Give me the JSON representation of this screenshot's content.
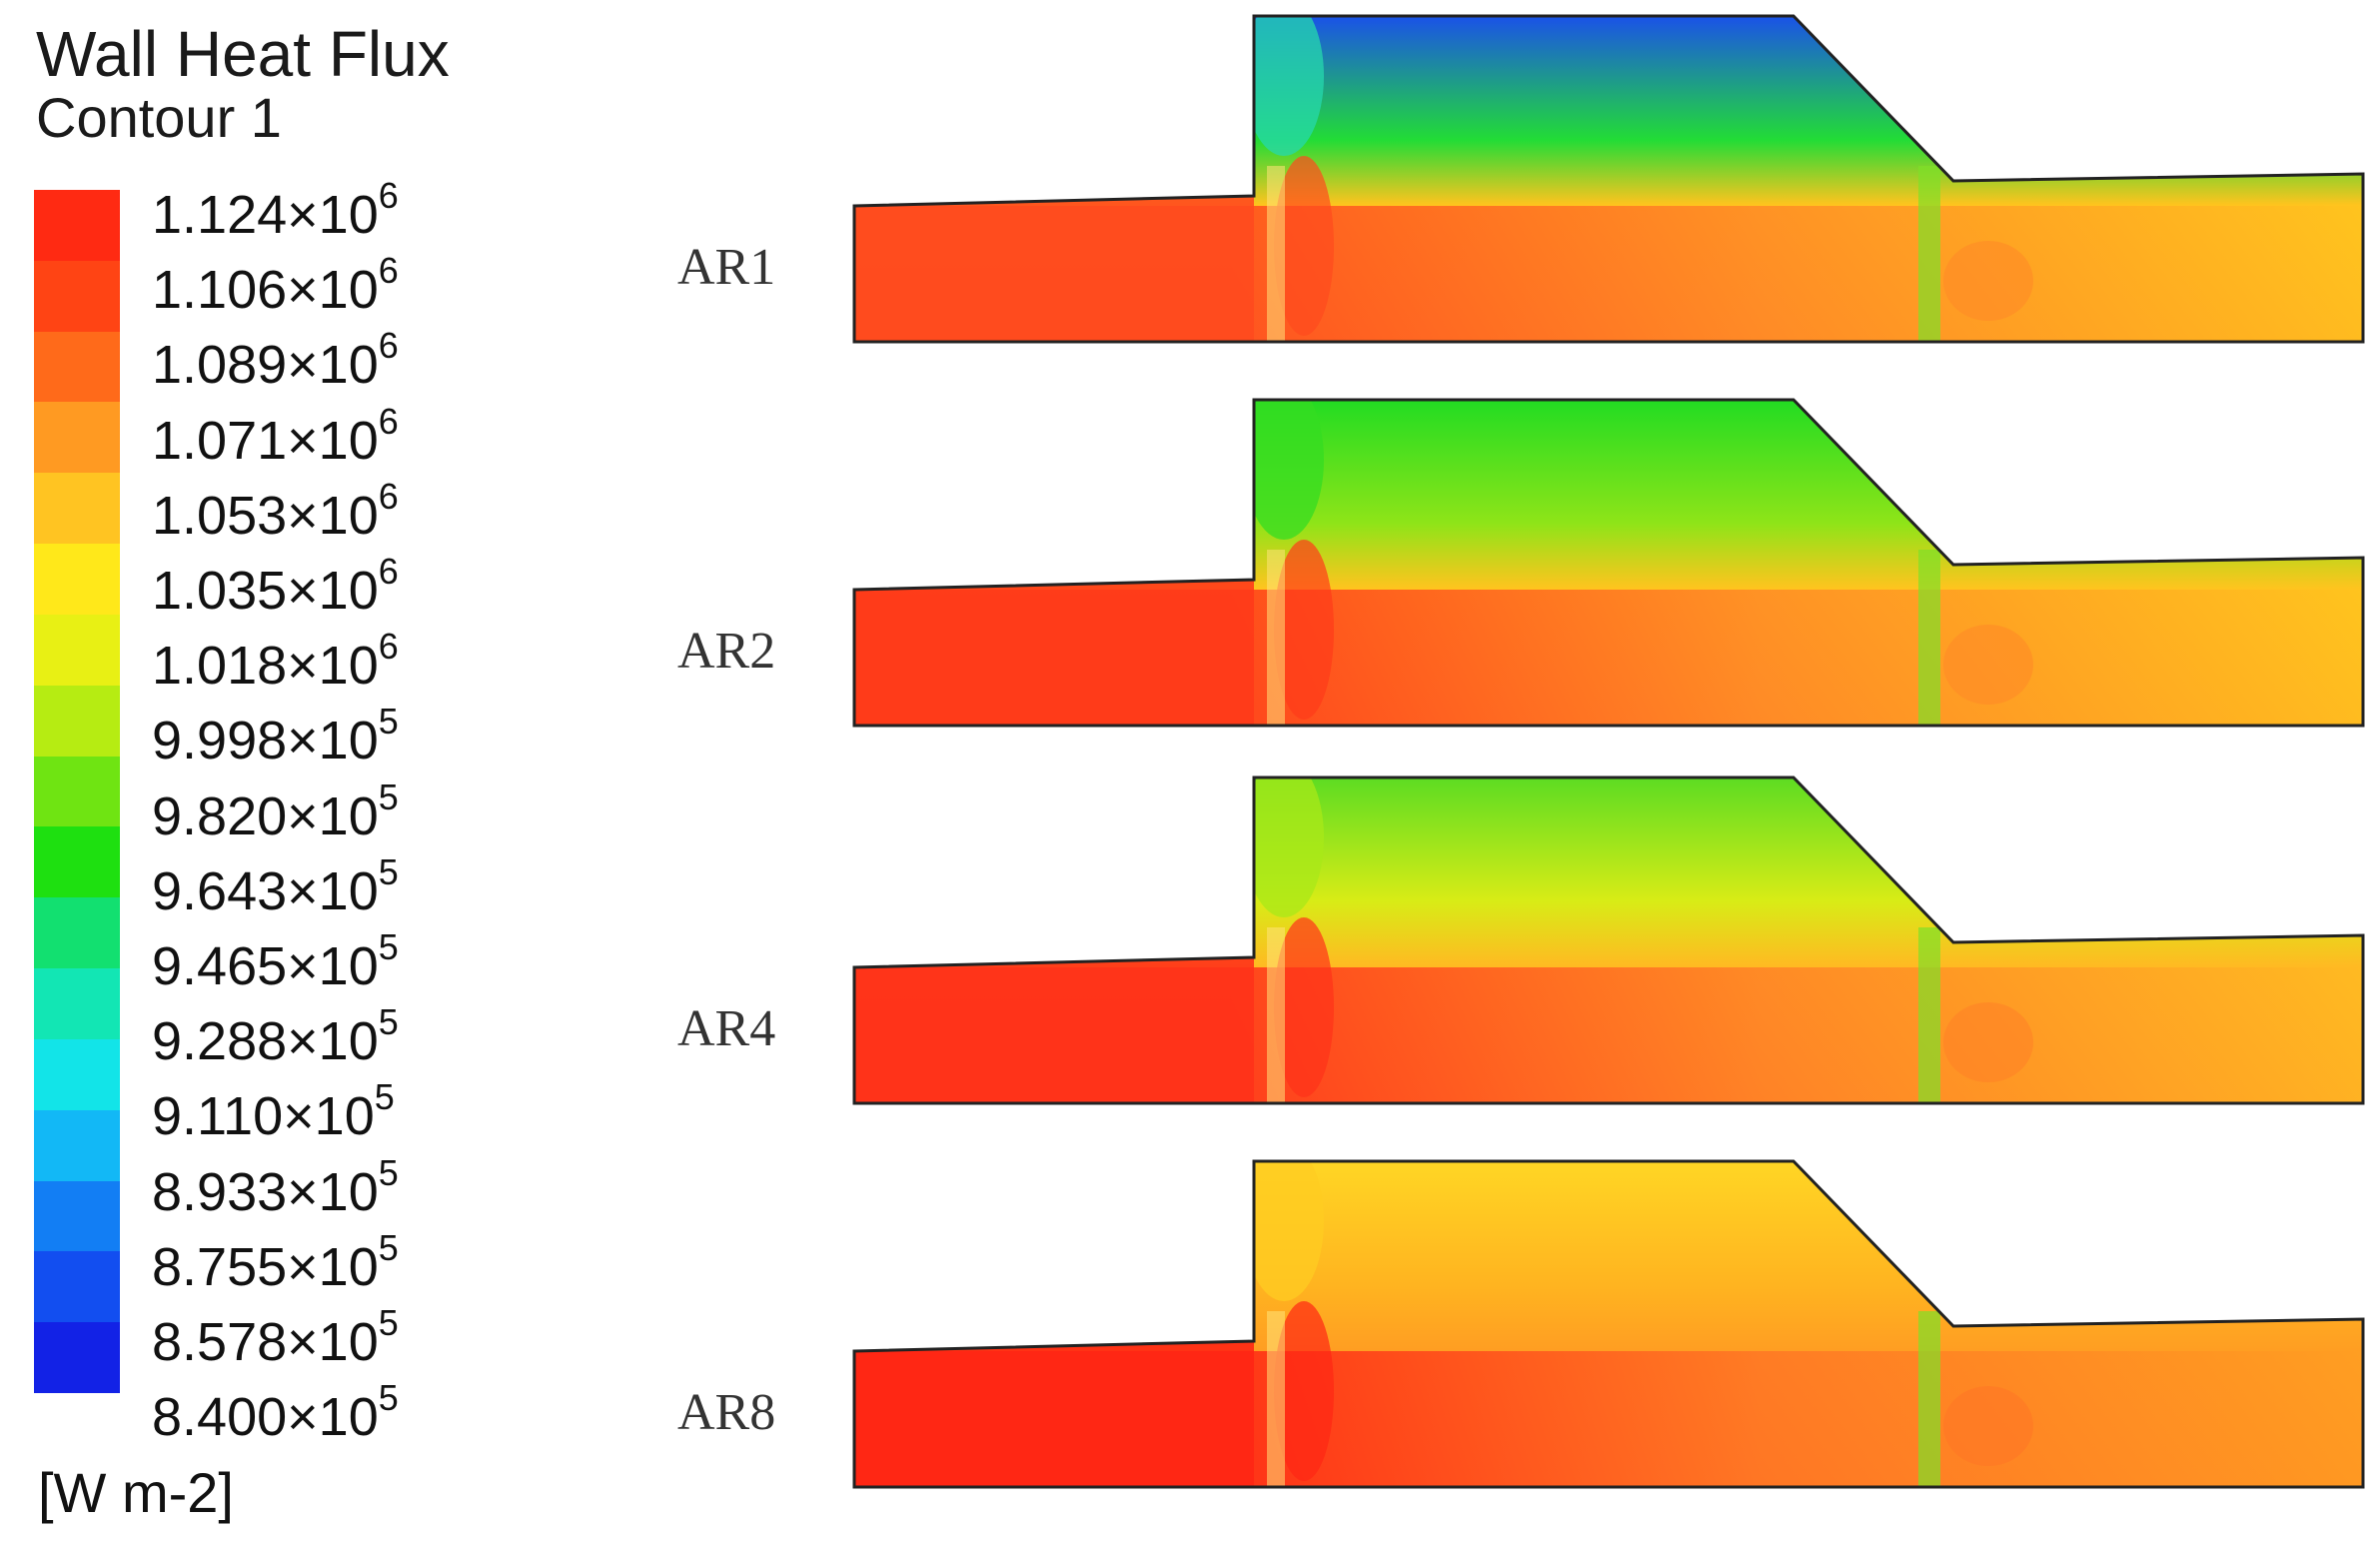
{
  "legend": {
    "title": "Wall Heat Flux",
    "subtitle": "Contour 1",
    "units": "[W m-2]",
    "ticks": [
      {
        "mantissa": "1.124",
        "exp": "6"
      },
      {
        "mantissa": "1.106",
        "exp": "6"
      },
      {
        "mantissa": "1.089",
        "exp": "6"
      },
      {
        "mantissa": "1.071",
        "exp": "6"
      },
      {
        "mantissa": "1.053",
        "exp": "6"
      },
      {
        "mantissa": "1.035",
        "exp": "6"
      },
      {
        "mantissa": "1.018",
        "exp": "6"
      },
      {
        "mantissa": "9.998",
        "exp": "5"
      },
      {
        "mantissa": "9.820",
        "exp": "5"
      },
      {
        "mantissa": "9.643",
        "exp": "5"
      },
      {
        "mantissa": "9.465",
        "exp": "5"
      },
      {
        "mantissa": "9.288",
        "exp": "5"
      },
      {
        "mantissa": "9.110",
        "exp": "5"
      },
      {
        "mantissa": "8.933",
        "exp": "5"
      },
      {
        "mantissa": "8.755",
        "exp": "5"
      },
      {
        "mantissa": "8.578",
        "exp": "5"
      },
      {
        "mantissa": "8.400",
        "exp": "5"
      }
    ],
    "colors": [
      "#ff2a12",
      "#ff4414",
      "#ff6a1a",
      "#ff9a22",
      "#ffc422",
      "#ffe81a",
      "#e8f014",
      "#b6ec12",
      "#6fe412",
      "#1ee010",
      "#12e070",
      "#12e6b4",
      "#12e4e8",
      "#12b8f6",
      "#127ef4",
      "#124ef0",
      "#1222e6"
    ]
  },
  "panels": [
    {
      "label": "AR1",
      "colors": {
        "upper_left": "#26d8ae",
        "upper_mid": "#1a52e8",
        "upper_low": "#22dc36",
        "mid": "#ffc41e",
        "lower": "#ff8a26",
        "inlet": "#ff4a1e"
      }
    },
    {
      "label": "AR2",
      "colors": {
        "upper_left": "#34dc22",
        "upper_mid": "#22dc22",
        "upper_low": "#8fe418",
        "mid": "#ffc41e",
        "lower": "#ff8a26",
        "inlet": "#ff3a1a"
      }
    },
    {
      "label": "AR4",
      "colors": {
        "upper_left": "#a8e818",
        "upper_mid": "#5cdc22",
        "upper_low": "#d8ec16",
        "mid": "#ffba22",
        "lower": "#ff8226",
        "inlet": "#ff321a"
      }
    },
    {
      "label": "AR8",
      "colors": {
        "upper_left": "#ffcc22",
        "upper_mid": "#ffd624",
        "upper_low": "#ffb420",
        "mid": "#ff9e22",
        "lower": "#ff7624",
        "inlet": "#ff2614"
      }
    }
  ]
}
